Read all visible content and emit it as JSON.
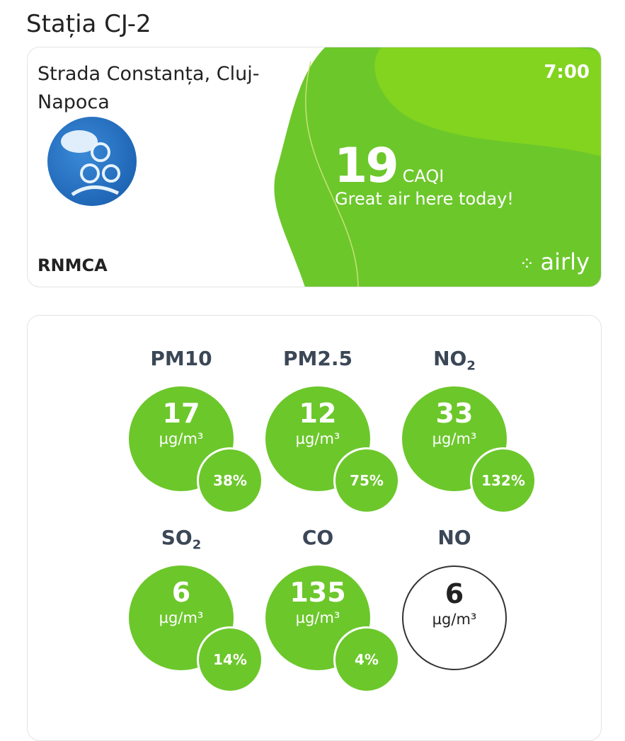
{
  "page_title": "Stația CJ-2",
  "station": {
    "address": "Strada Constanța, Cluj-Napoca",
    "provider": "RNMCA",
    "time": "7:00",
    "caqi_value": "19",
    "caqi_unit": "CAQI",
    "message": "Great air here today!",
    "brand": "airly",
    "accent": "#6cc72b"
  },
  "pollutants": [
    {
      "name": "PM10",
      "sub": "",
      "value": "17",
      "unit": "µg/m³",
      "percent": "38%"
    },
    {
      "name": "PM2.5",
      "sub": "",
      "value": "12",
      "unit": "µg/m³",
      "percent": "75%"
    },
    {
      "name": "NO",
      "sub": "2",
      "value": "33",
      "unit": "µg/m³",
      "percent": "132%"
    },
    {
      "name": "SO",
      "sub": "2",
      "value": "6",
      "unit": "µg/m³",
      "percent": "14%"
    },
    {
      "name": "CO",
      "sub": "",
      "value": "135",
      "unit": "µg/m³",
      "percent": "4%"
    },
    {
      "name": "NO",
      "sub": "",
      "value": "6",
      "unit": "µg/m³",
      "percent": null
    }
  ]
}
